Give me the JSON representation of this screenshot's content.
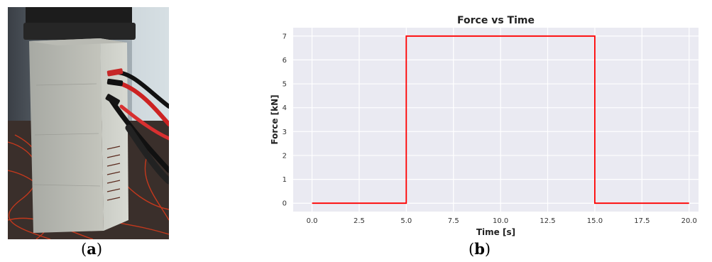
{
  "panels": {
    "a": {
      "open": "(",
      "letter": "a",
      "close": ")"
    },
    "b": {
      "open": "(",
      "letter": "b",
      "close": ")"
    }
  },
  "photo": {
    "subject": "concrete specimen with wire electrodes and clip leads under load plates"
  },
  "colors": {
    "plot_background": "#eaeaf2",
    "grid": "#ffffff",
    "line": "#ff0000"
  },
  "chart_data": {
    "type": "line",
    "title": "Force vs Time",
    "xlabel": "Time [s]",
    "ylabel": "Force [kN]",
    "xlim": [
      -1,
      20.5
    ],
    "ylim": [
      -0.35,
      7.35
    ],
    "xticks": [
      "0.0",
      "2.5",
      "5.0",
      "7.5",
      "10.0",
      "12.5",
      "15.0",
      "17.5",
      "20.0"
    ],
    "yticks": [
      "0",
      "1",
      "2",
      "3",
      "4",
      "5",
      "6",
      "7"
    ],
    "grid": true,
    "legend": "none",
    "series": [
      {
        "x": [
          0,
          5,
          5,
          15,
          15,
          20
        ],
        "y": [
          0,
          0,
          7,
          7,
          0,
          0
        ]
      }
    ]
  }
}
